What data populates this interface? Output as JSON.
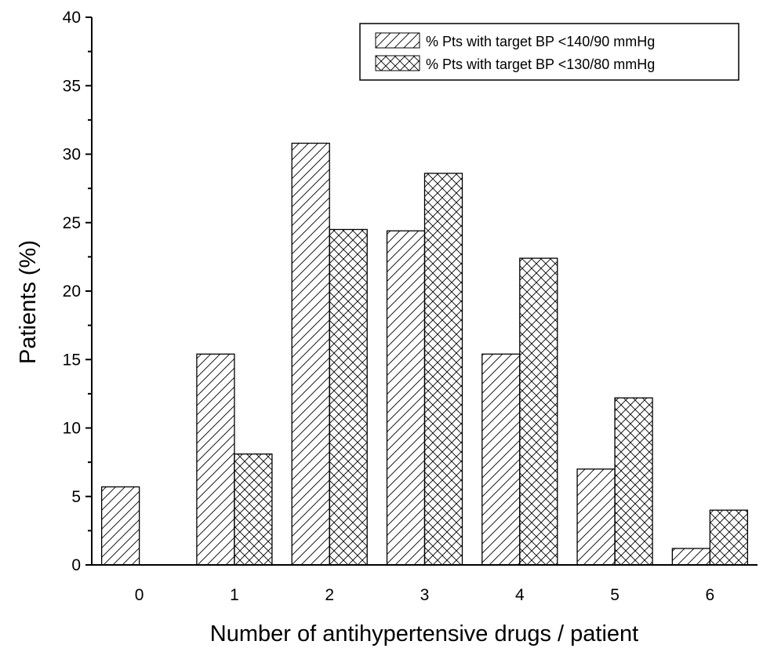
{
  "chart_data": {
    "type": "bar",
    "title": "",
    "xlabel": "Number of antihypertensive drugs / patient",
    "ylabel": "Patients (%)",
    "categories": [
      "0",
      "1",
      "2",
      "3",
      "4",
      "5",
      "6"
    ],
    "ylim": [
      0,
      40
    ],
    "yticks": [
      "0",
      "5",
      "10",
      "15",
      "20",
      "25",
      "30",
      "35",
      "40"
    ],
    "yminor_step": 2.5,
    "grid": false,
    "legend_position": "top-right",
    "series": [
      {
        "name": "% Pts with target BP <140/90 mmHg",
        "pattern": "diagonal",
        "values": [
          5.7,
          15.4,
          30.8,
          24.4,
          15.4,
          7.0,
          1.2
        ]
      },
      {
        "name": "% Pts with target BP <130/80 mmHg",
        "pattern": "crosshatch",
        "values": [
          0,
          8.1,
          24.5,
          28.6,
          22.4,
          12.2,
          4.0
        ]
      }
    ],
    "colors": {
      "bar_fill": "#ffffff",
      "stroke": "#000000",
      "hatch": "#000000"
    }
  }
}
